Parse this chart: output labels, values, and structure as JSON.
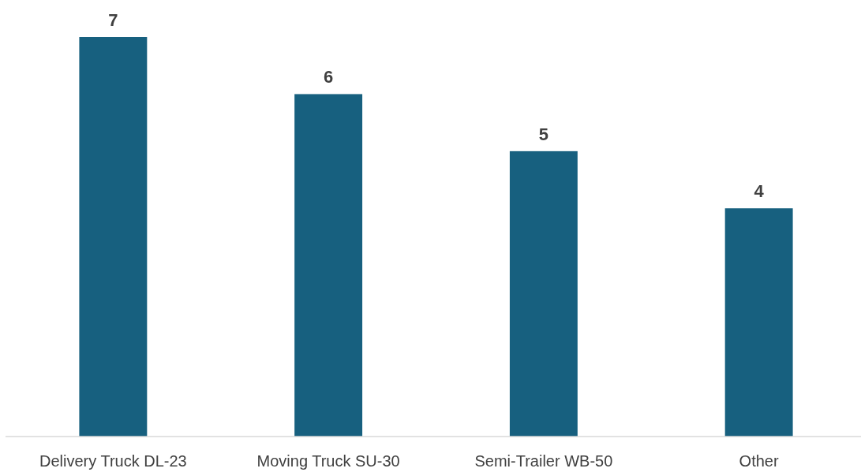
{
  "chart_data": {
    "type": "bar",
    "categories": [
      "Delivery Truck DL-23",
      "Moving Truck SU-30",
      "Semi-Trailer WB-50",
      "Other"
    ],
    "values": [
      7,
      6,
      5,
      4
    ],
    "color": "#17607f",
    "data_labels": true
  }
}
